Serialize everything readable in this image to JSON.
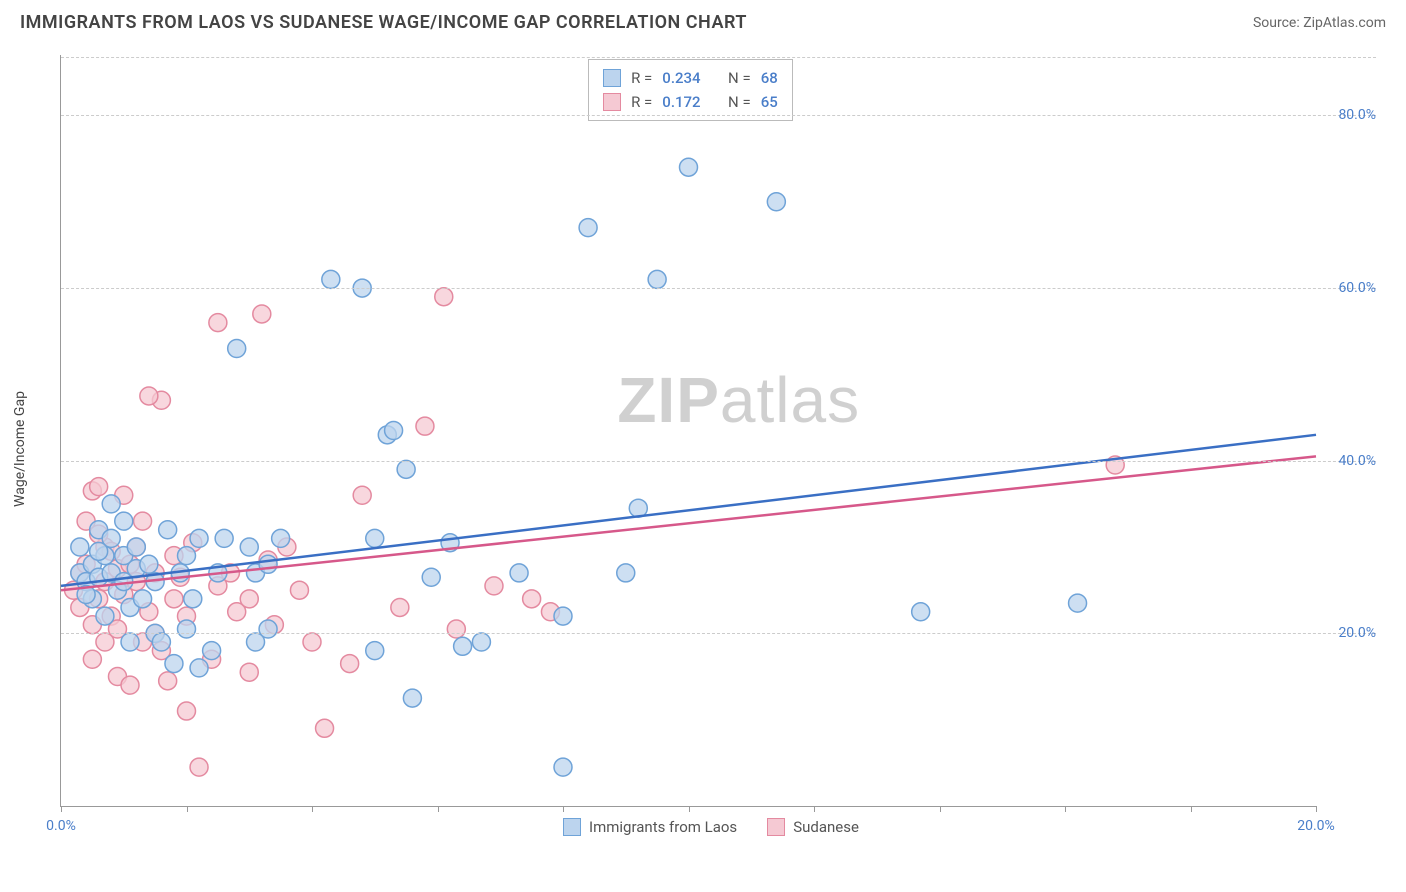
{
  "header": {
    "title": "IMMIGRANTS FROM LAOS VS SUDANESE WAGE/INCOME GAP CORRELATION CHART",
    "source_prefix": "Source: ",
    "source_name": "ZipAtlas.com"
  },
  "watermark": {
    "bold": "ZIP",
    "rest": "atlas"
  },
  "chart": {
    "type": "scatter",
    "y_axis_label": "Wage/Income Gap",
    "xlim": [
      0,
      20
    ],
    "ylim": [
      0,
      87
    ],
    "y_ticks": [
      20,
      40,
      60,
      80
    ],
    "y_tick_labels": [
      "20.0%",
      "40.0%",
      "60.0%",
      "80.0%"
    ],
    "x_tick_positions": [
      0,
      2,
      4,
      6,
      8,
      10,
      12,
      14,
      16,
      18,
      20
    ],
    "x_tick_labels": {
      "0": "0.0%",
      "20": "20.0%"
    },
    "grid_color": "#cccccc",
    "axis_color": "#999999",
    "background_color": "#ffffff",
    "series": [
      {
        "name": "Immigrants from Laos",
        "color_fill": "#bcd4ee",
        "color_stroke": "#6fa3d8",
        "line_color": "#3a6fc4",
        "marker_radius": 9,
        "r_value": "0.234",
        "n_value": "68",
        "trend": {
          "x1": 0,
          "y1": 25.5,
          "x2": 20,
          "y2": 43
        },
        "points": [
          [
            0.3,
            27
          ],
          [
            0.3,
            30
          ],
          [
            0.4,
            26
          ],
          [
            0.5,
            28
          ],
          [
            0.5,
            24
          ],
          [
            0.6,
            32
          ],
          [
            0.6,
            26.5
          ],
          [
            0.7,
            29
          ],
          [
            0.7,
            22
          ],
          [
            0.8,
            31
          ],
          [
            0.8,
            35
          ],
          [
            0.8,
            27
          ],
          [
            0.9,
            25
          ],
          [
            1.0,
            29
          ],
          [
            1.0,
            33
          ],
          [
            1.0,
            26
          ],
          [
            1.1,
            19
          ],
          [
            1.1,
            23
          ],
          [
            1.2,
            27.5
          ],
          [
            1.2,
            30
          ],
          [
            1.3,
            24
          ],
          [
            1.4,
            28
          ],
          [
            1.5,
            26
          ],
          [
            1.5,
            20
          ],
          [
            1.6,
            19
          ],
          [
            1.7,
            32
          ],
          [
            1.9,
            27
          ],
          [
            2.0,
            29
          ],
          [
            2.1,
            24
          ],
          [
            2.2,
            31
          ],
          [
            2.2,
            16
          ],
          [
            2.4,
            18
          ],
          [
            2.5,
            27
          ],
          [
            2.6,
            31
          ],
          [
            2.8,
            53
          ],
          [
            3.0,
            30
          ],
          [
            3.1,
            27
          ],
          [
            3.1,
            19
          ],
          [
            3.3,
            28
          ],
          [
            3.3,
            20.5
          ],
          [
            3.5,
            31
          ],
          [
            4.3,
            61
          ],
          [
            4.8,
            60
          ],
          [
            5.0,
            31
          ],
          [
            5.0,
            18
          ],
          [
            5.2,
            43
          ],
          [
            5.3,
            43.5
          ],
          [
            5.5,
            39
          ],
          [
            5.6,
            12.5
          ],
          [
            5.9,
            26.5
          ],
          [
            6.2,
            30.5
          ],
          [
            6.4,
            18.5
          ],
          [
            6.7,
            19
          ],
          [
            7.3,
            27
          ],
          [
            8.0,
            4.5
          ],
          [
            8.0,
            22
          ],
          [
            8.4,
            67
          ],
          [
            9.0,
            27
          ],
          [
            9.2,
            34.5
          ],
          [
            9.5,
            61
          ],
          [
            10.0,
            74
          ],
          [
            11.4,
            70
          ],
          [
            13.7,
            22.5
          ],
          [
            16.2,
            23.5
          ],
          [
            0.4,
            24.5
          ],
          [
            0.6,
            29.5
          ],
          [
            1.8,
            16.5
          ],
          [
            2.0,
            20.5
          ]
        ]
      },
      {
        "name": "Sudanese",
        "color_fill": "#f5c9d3",
        "color_stroke": "#e48aa0",
        "line_color": "#d6588a",
        "marker_radius": 9,
        "r_value": "0.172",
        "n_value": "65",
        "trend": {
          "x1": 0,
          "y1": 25,
          "x2": 20,
          "y2": 40.5
        },
        "points": [
          [
            0.2,
            25
          ],
          [
            0.3,
            23
          ],
          [
            0.3,
            27
          ],
          [
            0.4,
            33
          ],
          [
            0.4,
            28
          ],
          [
            0.5,
            36.5
          ],
          [
            0.5,
            21
          ],
          [
            0.5,
            17
          ],
          [
            0.6,
            24
          ],
          [
            0.6,
            37
          ],
          [
            0.7,
            30
          ],
          [
            0.7,
            26
          ],
          [
            0.7,
            19
          ],
          [
            0.8,
            29.5
          ],
          [
            0.8,
            22
          ],
          [
            0.9,
            15
          ],
          [
            0.9,
            20.5
          ],
          [
            0.9,
            27.5
          ],
          [
            1.0,
            36
          ],
          [
            1.0,
            24.5
          ],
          [
            1.1,
            28
          ],
          [
            1.1,
            14
          ],
          [
            1.2,
            26
          ],
          [
            1.2,
            30
          ],
          [
            1.3,
            19
          ],
          [
            1.3,
            33
          ],
          [
            1.4,
            22.5
          ],
          [
            1.5,
            20
          ],
          [
            1.5,
            27
          ],
          [
            1.6,
            47
          ],
          [
            1.6,
            18
          ],
          [
            1.7,
            14.5
          ],
          [
            1.8,
            29
          ],
          [
            1.8,
            24
          ],
          [
            1.9,
            26.5
          ],
          [
            2.0,
            11
          ],
          [
            2.0,
            22
          ],
          [
            2.1,
            30.5
          ],
          [
            2.2,
            4.5
          ],
          [
            2.4,
            17
          ],
          [
            2.5,
            25.5
          ],
          [
            2.5,
            56
          ],
          [
            2.7,
            27
          ],
          [
            2.8,
            22.5
          ],
          [
            3.0,
            15.5
          ],
          [
            3.0,
            24
          ],
          [
            3.2,
            57
          ],
          [
            3.3,
            28.5
          ],
          [
            3.4,
            21
          ],
          [
            3.6,
            30
          ],
          [
            3.8,
            25
          ],
          [
            4.0,
            19
          ],
          [
            4.2,
            9
          ],
          [
            4.6,
            16.5
          ],
          [
            4.8,
            36
          ],
          [
            5.4,
            23
          ],
          [
            5.8,
            44
          ],
          [
            6.1,
            59
          ],
          [
            6.3,
            20.5
          ],
          [
            6.9,
            25.5
          ],
          [
            7.5,
            24
          ],
          [
            7.8,
            22.5
          ],
          [
            16.8,
            39.5
          ],
          [
            1.4,
            47.5
          ],
          [
            0.6,
            31.5
          ]
        ]
      }
    ],
    "stats_labels": {
      "R": "R =",
      "N": "N ="
    },
    "legend_labels": [
      "Immigrants from Laos",
      "Sudanese"
    ]
  }
}
